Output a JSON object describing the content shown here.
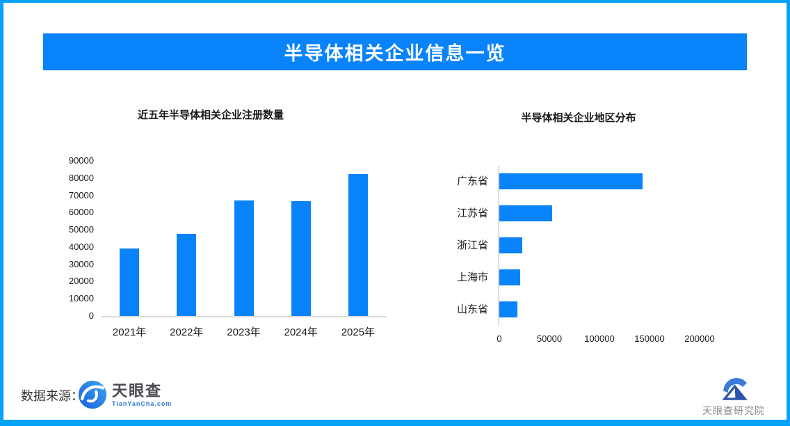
{
  "page": {
    "background": "#ffffff",
    "border_color": "#04A1F8",
    "accent_color": "#0883FA"
  },
  "header": {
    "title": "半导体相关企业信息一览",
    "bg_color": "#0883FA",
    "text_color": "#ffffff"
  },
  "chart_data": [
    {
      "type": "bar",
      "orientation": "vertical",
      "title": "近五年半导体相关企业注册数量",
      "categories": [
        "2021年",
        "2022年",
        "2023年",
        "2024年",
        "2025年"
      ],
      "values": [
        39000,
        47500,
        67000,
        66500,
        82500
      ],
      "ylim": [
        0,
        90000
      ],
      "yticks": [
        0,
        10000,
        20000,
        30000,
        40000,
        50000,
        60000,
        70000,
        80000,
        90000
      ],
      "bar_color": "#0883FA",
      "grid": false,
      "legend": false
    },
    {
      "type": "bar",
      "orientation": "horizontal",
      "title": "半导体相关企业地区分布",
      "categories": [
        "广东省",
        "江苏省",
        "浙江省",
        "上海市",
        "山东省"
      ],
      "values": [
        143000,
        52500,
        23000,
        21000,
        18000
      ],
      "xlim": [
        0,
        225000
      ],
      "xticks": [
        0,
        50000,
        100000,
        150000,
        200000
      ],
      "bar_color": "#0883FA",
      "grid": false,
      "legend": false
    }
  ],
  "footer": {
    "source_label": "数据来源：",
    "tianyancha_logo": {
      "name": "天眼查",
      "subtext": "TianYanCha.com"
    },
    "research_logo": {
      "name": "天眼查研究院"
    }
  }
}
